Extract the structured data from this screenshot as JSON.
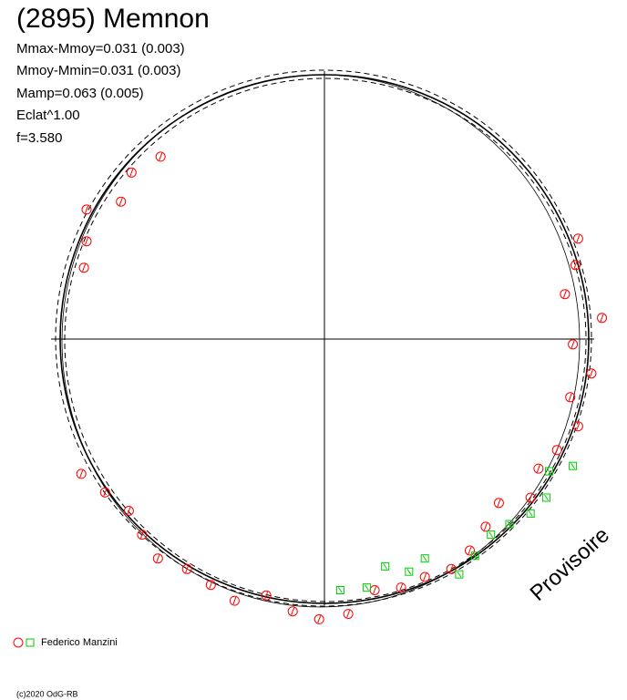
{
  "chart_data": {
    "type": "scatter",
    "title": "(2895) Memnon",
    "stats": [
      "Mmax-Mmoy=0.031 (0.003)",
      "Mmoy-Mmin=0.031 (0.003)",
      "Mamp=0.063 (0.005)",
      "Eclat^1.00",
      "f=3.580"
    ],
    "annotation": "Provisoire",
    "legend_label": "Federico Manzini",
    "footer": "(c)2020 OdG-RB",
    "xlim": [
      -104,
      104
    ],
    "ylim": [
      -104,
      104
    ],
    "series": [
      {
        "color": "#ff0000",
        "marker": "circle",
        "x": [
          -62,
          -73,
          -77,
          -90,
          -90,
          -91,
          91,
          96,
          95,
          105,
          94,
          101,
          93,
          96,
          88,
          81,
          78,
          66,
          61,
          55,
          48,
          38,
          29,
          19,
          9,
          -2,
          -12,
          -22,
          -34,
          -43,
          -52,
          -63,
          -69,
          -74,
          -83,
          -92
        ],
        "values": [
          69,
          63,
          52,
          49,
          37,
          27,
          17,
          38,
          28,
          8,
          -2,
          -13,
          -22,
          -33,
          -42,
          -49,
          -60,
          -62,
          -71,
          -80,
          -87,
          -90,
          -94,
          -95,
          -104,
          -106,
          -103,
          -97,
          -99,
          -93,
          -87,
          -83,
          -74,
          -65,
          -58,
          -51
        ]
      },
      {
        "color": "#00cc00",
        "marker": "square",
        "x": [
          94,
          85,
          84,
          78,
          70,
          63,
          57,
          51,
          38,
          32,
          23,
          16,
          6
        ],
        "values": [
          -48,
          -50,
          -60,
          -66,
          -70,
          -74,
          -82,
          -89,
          -83,
          -88,
          -86,
          -94,
          -95
        ]
      }
    ]
  }
}
